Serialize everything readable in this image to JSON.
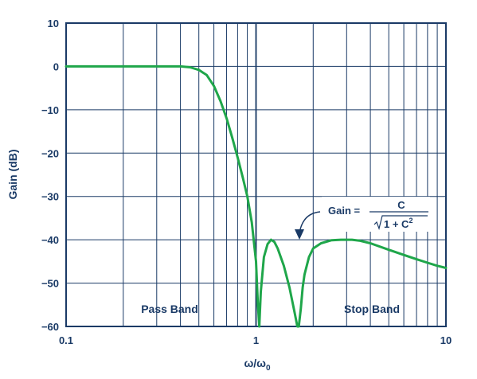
{
  "chart_data": {
    "type": "line",
    "xscale": "log",
    "xlim": [
      0.1,
      10
    ],
    "ylim": [
      -60,
      10
    ],
    "grid": true,
    "xlabel": "ω/ω",
    "xlabel_sub": "0",
    "ylabel": "Gain (dB)",
    "x_ticks": [
      "0.1",
      "1",
      "10"
    ],
    "y_ticks": [
      "10",
      "0",
      "−10",
      "−20",
      "−30",
      "−40",
      "−50",
      "−60"
    ],
    "y_tick_values": [
      10,
      0,
      -10,
      -20,
      -30,
      -40,
      -50,
      -60
    ],
    "color": "#1fa64a",
    "grid_color": "#1a3a66",
    "series": [
      {
        "x": [
          0.1,
          0.2,
          0.3,
          0.4,
          0.45,
          0.5,
          0.55,
          0.6,
          0.65,
          0.7,
          0.75,
          0.8,
          0.85,
          0.9,
          0.95,
          1.0,
          1.02,
          1.04,
          1.06,
          1.1,
          1.15,
          1.2,
          1.25,
          1.3,
          1.4,
          1.5,
          1.6,
          1.65,
          1.68,
          1.72,
          1.76,
          1.8,
          1.9,
          2.0,
          2.2,
          2.5,
          2.8,
          3.0,
          3.2,
          3.5,
          4.0,
          5.0,
          6.0,
          7.0,
          8.0,
          9.0,
          10.0
        ],
        "y": [
          0,
          0,
          0,
          0,
          -0.2,
          -0.8,
          -2,
          -4.5,
          -8,
          -12,
          -16.5,
          -21,
          -25.5,
          -30,
          -36,
          -45,
          -54,
          -60,
          -52,
          -44,
          -41,
          -40,
          -40.5,
          -42,
          -46,
          -51,
          -57,
          -60,
          -60,
          -56,
          -51,
          -48,
          -44,
          -42,
          -40.8,
          -40.1,
          -40,
          -40,
          -40,
          -40.2,
          -40.8,
          -42.3,
          -43.5,
          -44.5,
          -45.3,
          -46,
          -46.5
        ]
      }
    ],
    "annotations": {
      "pass_band": "Pass Band",
      "stop_band": "Stop Band",
      "eq_lhs": "Gain =",
      "eq_num": "C",
      "eq_den_pre": "1 + C",
      "eq_den_sup": "2"
    }
  }
}
